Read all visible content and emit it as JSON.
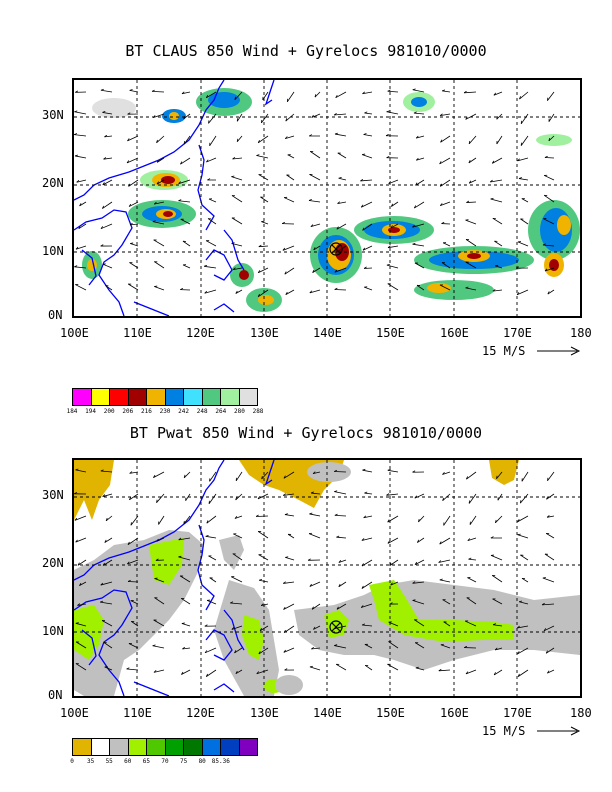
{
  "panels": [
    {
      "title": "BT CLAUS 850 Wind + Gyrelocs 981010/0000",
      "scale_label": "15 M/S",
      "colorbar": {
        "colors": [
          "#ff00ff",
          "#ffff00",
          "#ff0000",
          "#a00000",
          "#f0b400",
          "#0080e0",
          "#40e0ff",
          "#50c880",
          "#a0f0a0",
          "#e0e0e0"
        ],
        "labels": [
          "184",
          "194",
          "200",
          "206",
          "216",
          "230",
          "242",
          "248",
          "264",
          "280",
          "288"
        ]
      }
    },
    {
      "title": "BT Pwat 850 Wind + Gyrelocs 981010/0000",
      "scale_label": "15 M/S",
      "colorbar": {
        "colors": [
          "#e0b400",
          "#ffffff",
          "#c0c0c0",
          "#a0f000",
          "#50c800",
          "#00a000",
          "#007800",
          "#0070e0",
          "#0040c0",
          "#8000c0"
        ],
        "labels": [
          "0",
          "35",
          "55",
          "60",
          "65",
          "70",
          "75",
          "80",
          "85.36"
        ]
      }
    }
  ],
  "x_ticks": [
    "100E",
    "110E",
    "120E",
    "130E",
    "140E",
    "150E",
    "160E",
    "170E",
    "180"
  ],
  "y_ticks": [
    "30N",
    "20N",
    "10N",
    "0N"
  ],
  "colors": {
    "coast": "#0000ff",
    "frame": "#000000"
  }
}
